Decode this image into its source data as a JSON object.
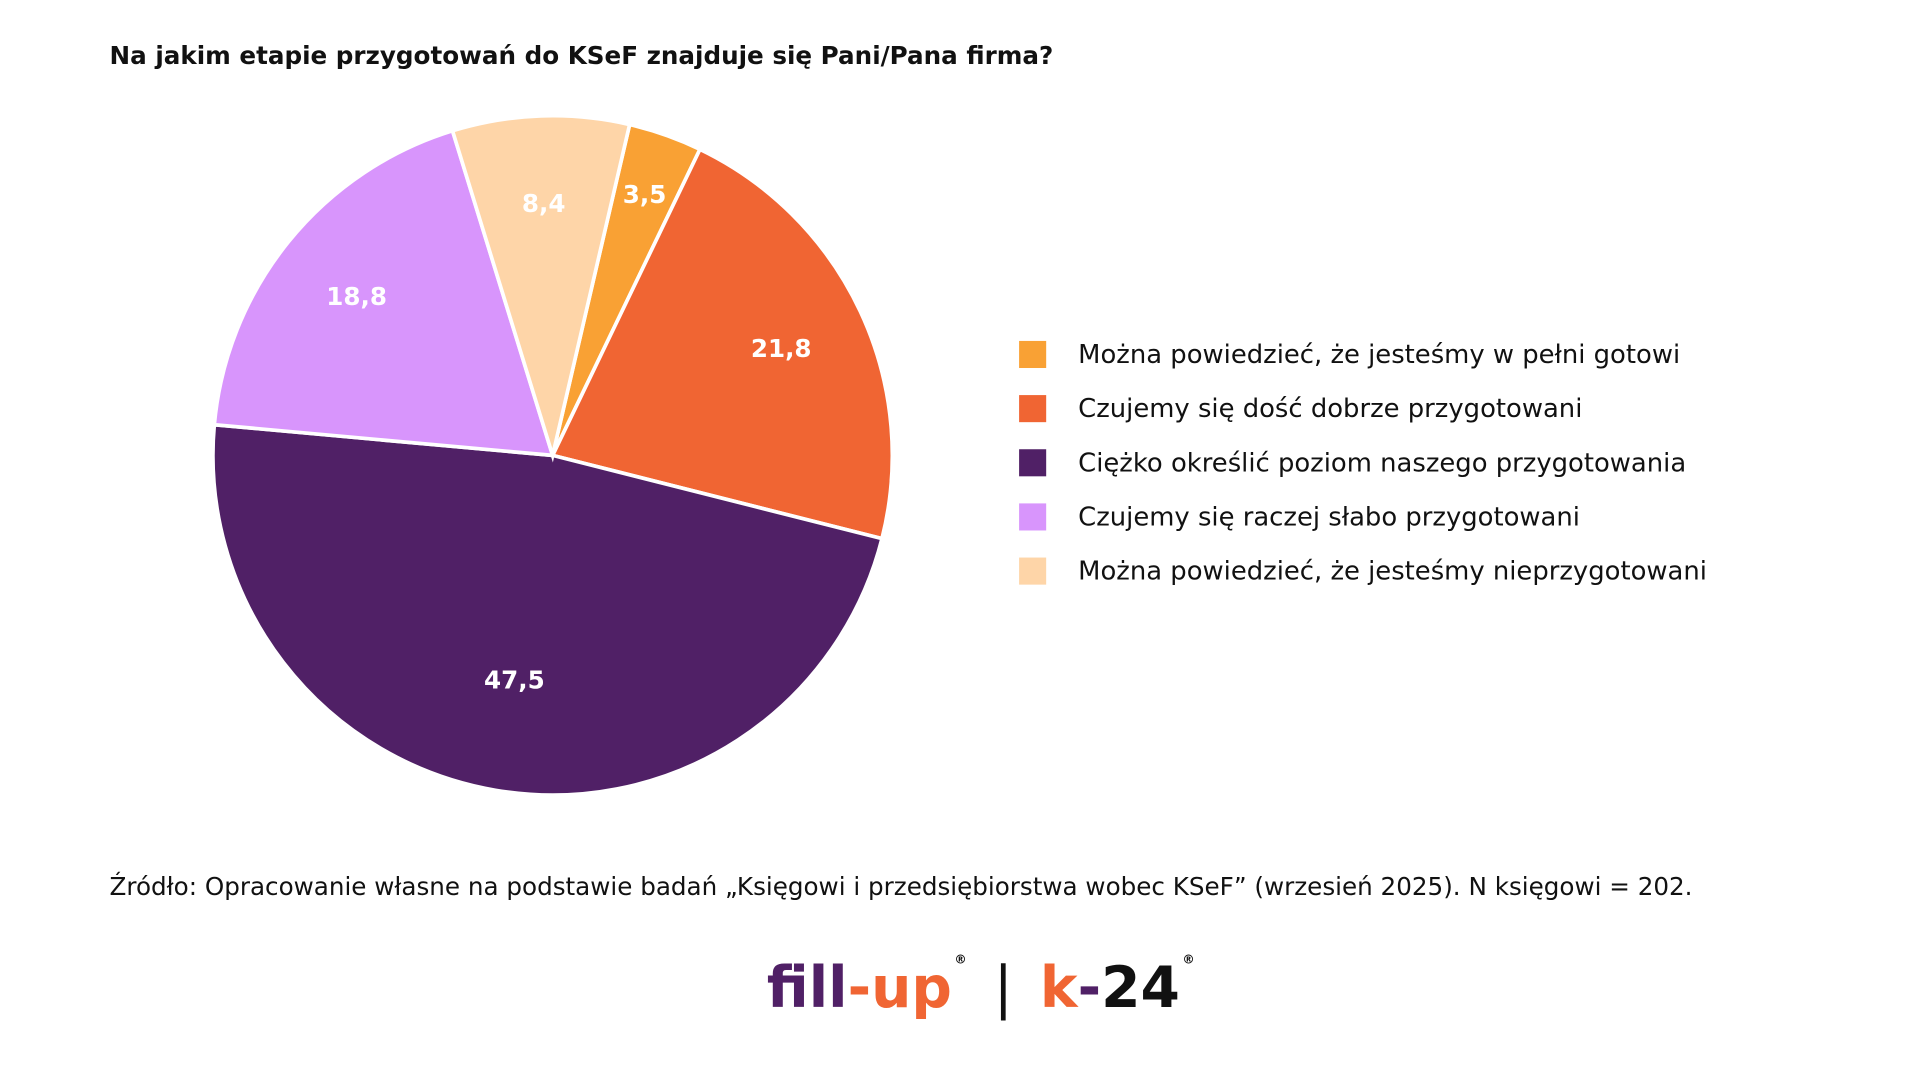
{
  "chart_data": {
    "type": "pie",
    "title": "Na jakim etapie przygotowań do KSeF znajduje się Pani/Pana firma?",
    "start_angle_deg": 13.1,
    "slices": [
      {
        "label": "Można powiedzieć, że jesteśmy w pełni gotowi",
        "value": 3.5,
        "display": "3,5",
        "color": "#F9A134"
      },
      {
        "label": "Czujemy się dość dobrze przygotowani",
        "value": 21.8,
        "display": "21,8",
        "color": "#F06533"
      },
      {
        "label": "Ciężko określić poziom naszego przygotowania",
        "value": 47.5,
        "display": "47,5",
        "color": "#502066"
      },
      {
        "label": "Czujemy się raczej słabo przygotowani",
        "value": 18.8,
        "display": "18,8",
        "color": "#D895FC"
      },
      {
        "label": "Można powiedzieć, że jesteśmy nieprzygotowani",
        "value": 8.4,
        "display": "8,4",
        "color": "#FED5A8"
      }
    ],
    "legend_position": "right"
  },
  "source": "Źródło: Opracowanie własne na podstawie badań „Księgowi i przedsiębiorstwa wobec KSeF” (wrzesień 2025). N księgowi = 202.",
  "logo": {
    "fill": "fill",
    "dash": "-",
    "up": "up",
    "reg": "®",
    "sep": "|",
    "k": "k",
    "dash2": "-",
    "n24": "24"
  }
}
